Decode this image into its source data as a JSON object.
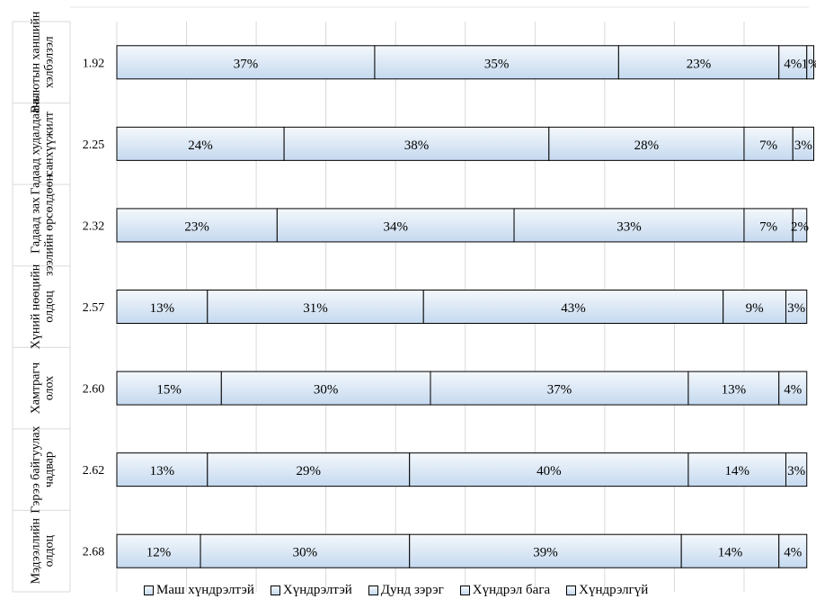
{
  "chart_data": {
    "type": "bar",
    "orientation": "horizontal",
    "stacked": true,
    "normalized": true,
    "categories": [
      "Валютын ханшийн хэлбэлзэл",
      "Гадаад худалдааны санхүүжилт",
      "Гадаад зах зээлийн өрсөлдөөн",
      "Хүний нөөцийн олдоц",
      "Хамтрагч олох",
      "Гэрээ байгуулах чадвар",
      "Мэдээллийн олдоц"
    ],
    "scores": [
      "1.92",
      "2.25",
      "2.32",
      "2.57",
      "2.60",
      "2.62",
      "2.68"
    ],
    "series": [
      {
        "name": "Маш хүндрэлтэй",
        "values": [
          37,
          24,
          23,
          13,
          15,
          13,
          12
        ]
      },
      {
        "name": "Хүндрэлтэй",
        "values": [
          35,
          38,
          34,
          31,
          30,
          29,
          30
        ]
      },
      {
        "name": "Дунд зэрэг",
        "values": [
          23,
          28,
          33,
          43,
          37,
          40,
          39
        ]
      },
      {
        "name": "Хүндрэл бага",
        "values": [
          4,
          7,
          7,
          9,
          13,
          14,
          14
        ]
      },
      {
        "name": "Хүндрэлгүй",
        "values": [
          1,
          3,
          2,
          3,
          4,
          3,
          4
        ]
      }
    ],
    "value_suffix": "%",
    "xlim": [
      0,
      100
    ],
    "grid": true,
    "legend_position": "bottom",
    "colors": {
      "bar_top": "#f4f8fc",
      "bar_bottom": "#c5d9ef",
      "border": "#000000",
      "grid": "#d9d9d9"
    }
  }
}
